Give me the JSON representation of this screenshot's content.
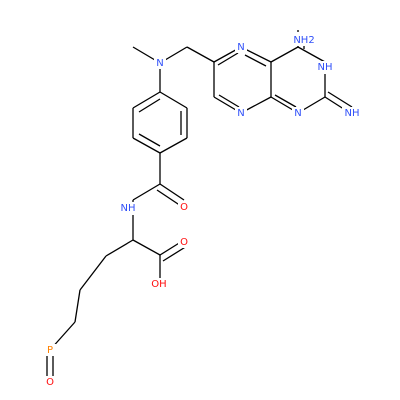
{
  "atoms": [
    {
      "label": "NH2"
    },
    {
      "label": "N"
    },
    {
      "label": "NH"
    },
    {
      "label": "N"
    },
    {
      "label": "N"
    },
    {
      "label": "N"
    },
    {
      "label": "NH"
    },
    {
      "label": "NH"
    },
    {
      "label": "O"
    },
    {
      "label": "O"
    },
    {
      "label": "OH"
    },
    {
      "label": "P"
    },
    {
      "label": "O"
    }
  ]
}
